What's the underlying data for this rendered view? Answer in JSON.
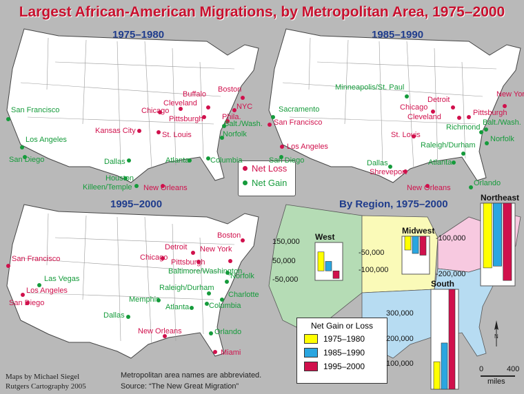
{
  "title": "Largest African-American Migrations, by Metropolitan Area, 1975–2000",
  "colors": {
    "loss": "#d0104c",
    "gain": "#159b3b",
    "y1975": "#ffff00",
    "y1985": "#2aa6e0",
    "y1995": "#d0104c"
  },
  "panels": {
    "p1": {
      "title": "1975–1980",
      "loss": [
        "Boston",
        "Buffalo",
        "Cleveland",
        "NYC",
        "Chicago",
        "Phila.",
        "Pittsburgh",
        "Kansas City",
        "St. Louis",
        "New Orleans"
      ],
      "gain": [
        "San Francisco",
        "Balt./Wash.",
        "Norfolk",
        "Los Angeles",
        "San Diego",
        "Atlanta",
        "Columbia",
        "Dallas",
        "Houston",
        "Killeen/Temple"
      ]
    },
    "p2": {
      "title": "1985–1990",
      "loss": [
        "New York",
        "Detroit",
        "Chicago",
        "Pittsburgh",
        "Cleveland",
        "San Francisco",
        "St. Louis",
        "Los Angeles",
        "Shreveport",
        "New Orleans"
      ],
      "gain": [
        "Minneapolis/St. Paul",
        "Sacramento",
        "Balt./Wash.",
        "Richmond",
        "Norfolk",
        "Raleigh/Durham",
        "Atlanta",
        "San Diego",
        "Dallas",
        "Orlando"
      ]
    },
    "p3": {
      "title": "1995–2000",
      "loss": [
        "Boston",
        "Detroit",
        "New York",
        "Chicago",
        "Pittsburgh",
        "San Francisco",
        "Los Angeles",
        "San Diego",
        "New Orleans",
        "Miami"
      ],
      "gain": [
        "Las Vegas",
        "Baltimore/Washington",
        "Norfolk",
        "Raleigh/Durham",
        "Charlotte",
        "Memphis",
        "Atlanta",
        "Columbia",
        "Dallas",
        "Orlando"
      ]
    }
  },
  "legend1": {
    "loss": "Net Loss",
    "gain": "Net Gain"
  },
  "region": {
    "title": "By Region, 1975–2000",
    "legend_title": "Net Gain or Loss",
    "units": "miles",
    "scale": [
      "0",
      "400"
    ]
  },
  "chart_data": {
    "type": "bar",
    "title": "By Region, 1975–2000",
    "series": [
      {
        "name": "1975–1980",
        "color": "#ffff00"
      },
      {
        "name": "1985–1990",
        "color": "#2aa6e0"
      },
      {
        "name": "1995–2000",
        "color": "#d0104c"
      }
    ],
    "regions": [
      {
        "name": "West",
        "values": [
          100000,
          50000,
          -40000
        ],
        "ticks": [
          "150,000",
          "50,000",
          "-50,000"
        ]
      },
      {
        "name": "Midwest",
        "values": [
          -40000,
          -50000,
          -55000
        ],
        "ticks": [
          "-50,000",
          "-100,000"
        ]
      },
      {
        "name": "Northeast",
        "values": [
          -180000,
          -175000,
          -215000
        ],
        "ticks": [
          "-100,000",
          "-200,000"
        ]
      },
      {
        "name": "South",
        "values": [
          110000,
          185000,
          400000
        ],
        "ticks": [
          "300,000",
          "200,000",
          "100,000"
        ]
      }
    ]
  },
  "credits": {
    "line1": "Maps by Michael Siegel",
    "line2": "Rutgers Cartography 2005"
  },
  "notes": {
    "line1": "Metropolitan area names are abbreviated.",
    "line2": "Source: “The New Great Migration”"
  }
}
